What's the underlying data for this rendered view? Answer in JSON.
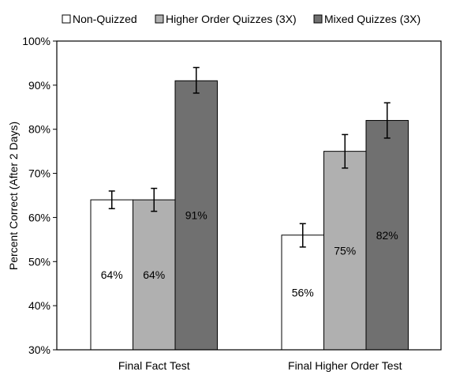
{
  "chart_data": {
    "type": "bar",
    "title": "",
    "xlabel": "",
    "ylabel": "Percent Correct (After 2 Days)",
    "ylim": [
      30,
      100
    ],
    "yticks": [
      "30%",
      "40%",
      "50%",
      "60%",
      "70%",
      "80%",
      "90%",
      "100%"
    ],
    "categories": [
      "Final Fact Test",
      "Final Higher Order Test"
    ],
    "legend_position": "top",
    "grid": false,
    "series": [
      {
        "name": "Non-Quizzed",
        "color": "#ffffff",
        "values": [
          64,
          56
        ],
        "labels": [
          "64%",
          "56%"
        ],
        "error": [
          [
            62,
            66
          ],
          [
            53.3,
            58.6
          ]
        ]
      },
      {
        "name": "Higher Order Quizzes (3X)",
        "color": "#b0b0b0",
        "values": [
          64,
          75
        ],
        "labels": [
          "64%",
          "75%"
        ],
        "error": [
          [
            61.4,
            66.6
          ],
          [
            71.2,
            78.8
          ]
        ]
      },
      {
        "name": "Mixed Quizzes (3X)",
        "color": "#707070",
        "values": [
          91,
          82
        ],
        "labels": [
          "91%",
          "82%"
        ],
        "error": [
          [
            88.2,
            94
          ],
          [
            78,
            86
          ]
        ]
      }
    ]
  }
}
